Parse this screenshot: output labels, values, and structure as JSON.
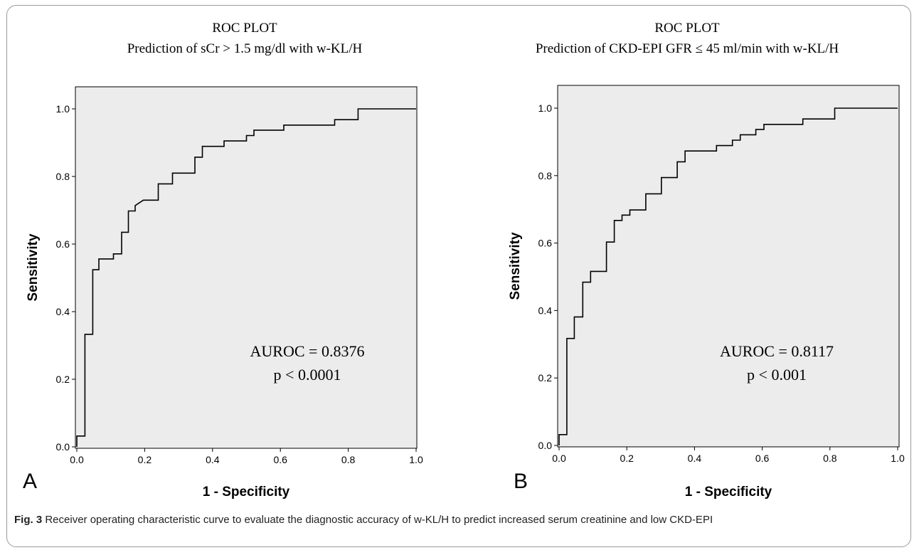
{
  "chart_data": [
    {
      "type": "line",
      "panel_label": "A",
      "title": "ROC PLOT",
      "subtitle": "Prediction of sCr > 1.5 mg/dl with w-KL/H",
      "xlabel": "1 - Specificity",
      "ylabel": "Sensitivity",
      "xlim": [
        0,
        1
      ],
      "ylim": [
        0,
        1
      ],
      "xticks": [
        "0.0",
        "0.2",
        "0.4",
        "0.6",
        "0.8",
        "1.0"
      ],
      "yticks": [
        "0.0",
        "0.2",
        "0.4",
        "0.6",
        "0.8",
        "1.0"
      ],
      "grid": false,
      "annotation": [
        "AUROC = 0.8376",
        "p < 0.0001"
      ],
      "series": [
        {
          "x": [
            0,
            0,
            0.024,
            0.024,
            0.047,
            0.047,
            0.065,
            0.065,
            0.108,
            0.108,
            0.132,
            0.132,
            0.152,
            0.152,
            0.172,
            0.172,
            0.196,
            0.207,
            0.24,
            0.24,
            0.282,
            0.282,
            0.348,
            0.348,
            0.37,
            0.37,
            0.434,
            0.434,
            0.478,
            0.478,
            0.5,
            0.5,
            0.522,
            0.522,
            0.61,
            0.61,
            0.76,
            0.76,
            0.783,
            0.783,
            0.829,
            0.829,
            1.0
          ],
          "y": [
            0,
            0.032,
            0.032,
            0.333,
            0.333,
            0.524,
            0.524,
            0.556,
            0.556,
            0.571,
            0.571,
            0.635,
            0.635,
            0.698,
            0.698,
            0.714,
            0.73,
            0.73,
            0.73,
            0.778,
            0.778,
            0.81,
            0.81,
            0.857,
            0.857,
            0.889,
            0.889,
            0.905,
            0.905,
            0.905,
            0.905,
            0.921,
            0.921,
            0.937,
            0.937,
            0.952,
            0.952,
            0.968,
            0.968,
            0.968,
            0.968,
            1.0,
            1.0
          ]
        }
      ]
    },
    {
      "type": "line",
      "panel_label": "B",
      "title": "ROC PLOT",
      "subtitle": "Prediction of CKD-EPI GFR ≤ 45 ml/min with w-KL/H",
      "xlabel": "1 - Specificity",
      "ylabel": "Sensitivity",
      "xlim": [
        0,
        1
      ],
      "ylim": [
        0,
        1
      ],
      "xticks": [
        "0.0",
        "0.2",
        "0.4",
        "0.6",
        "0.8",
        "1.0"
      ],
      "yticks": [
        "0.0",
        "0.2",
        "0.4",
        "0.6",
        "0.8",
        "1.0"
      ],
      "grid": false,
      "annotation": [
        "AUROC = 0.8117",
        "p < 0.001"
      ],
      "series": [
        {
          "x": [
            0,
            0,
            0.023,
            0.023,
            0.045,
            0.045,
            0.07,
            0.07,
            0.093,
            0.093,
            0.14,
            0.14,
            0.163,
            0.163,
            0.186,
            0.186,
            0.209,
            0.209,
            0.256,
            0.256,
            0.302,
            0.302,
            0.349,
            0.349,
            0.372,
            0.372,
            0.465,
            0.465,
            0.512,
            0.512,
            0.535,
            0.535,
            0.581,
            0.581,
            0.605,
            0.605,
            0.72,
            0.72,
            0.744,
            0.744,
            0.814,
            0.814,
            1.0
          ],
          "y": [
            0,
            0.032,
            0.032,
            0.317,
            0.317,
            0.381,
            0.381,
            0.484,
            0.484,
            0.516,
            0.516,
            0.603,
            0.603,
            0.667,
            0.667,
            0.683,
            0.683,
            0.698,
            0.698,
            0.746,
            0.746,
            0.794,
            0.794,
            0.841,
            0.841,
            0.873,
            0.873,
            0.889,
            0.889,
            0.905,
            0.905,
            0.921,
            0.921,
            0.937,
            0.937,
            0.952,
            0.952,
            0.968,
            0.968,
            0.968,
            0.968,
            1.0,
            1.0
          ]
        }
      ]
    }
  ],
  "caption": {
    "label": "Fig. 3",
    "text": " Receiver operating characteristic curve to evaluate the diagnostic accuracy of w-KL/H to predict increased serum creatinine and low CKD-EPI"
  }
}
